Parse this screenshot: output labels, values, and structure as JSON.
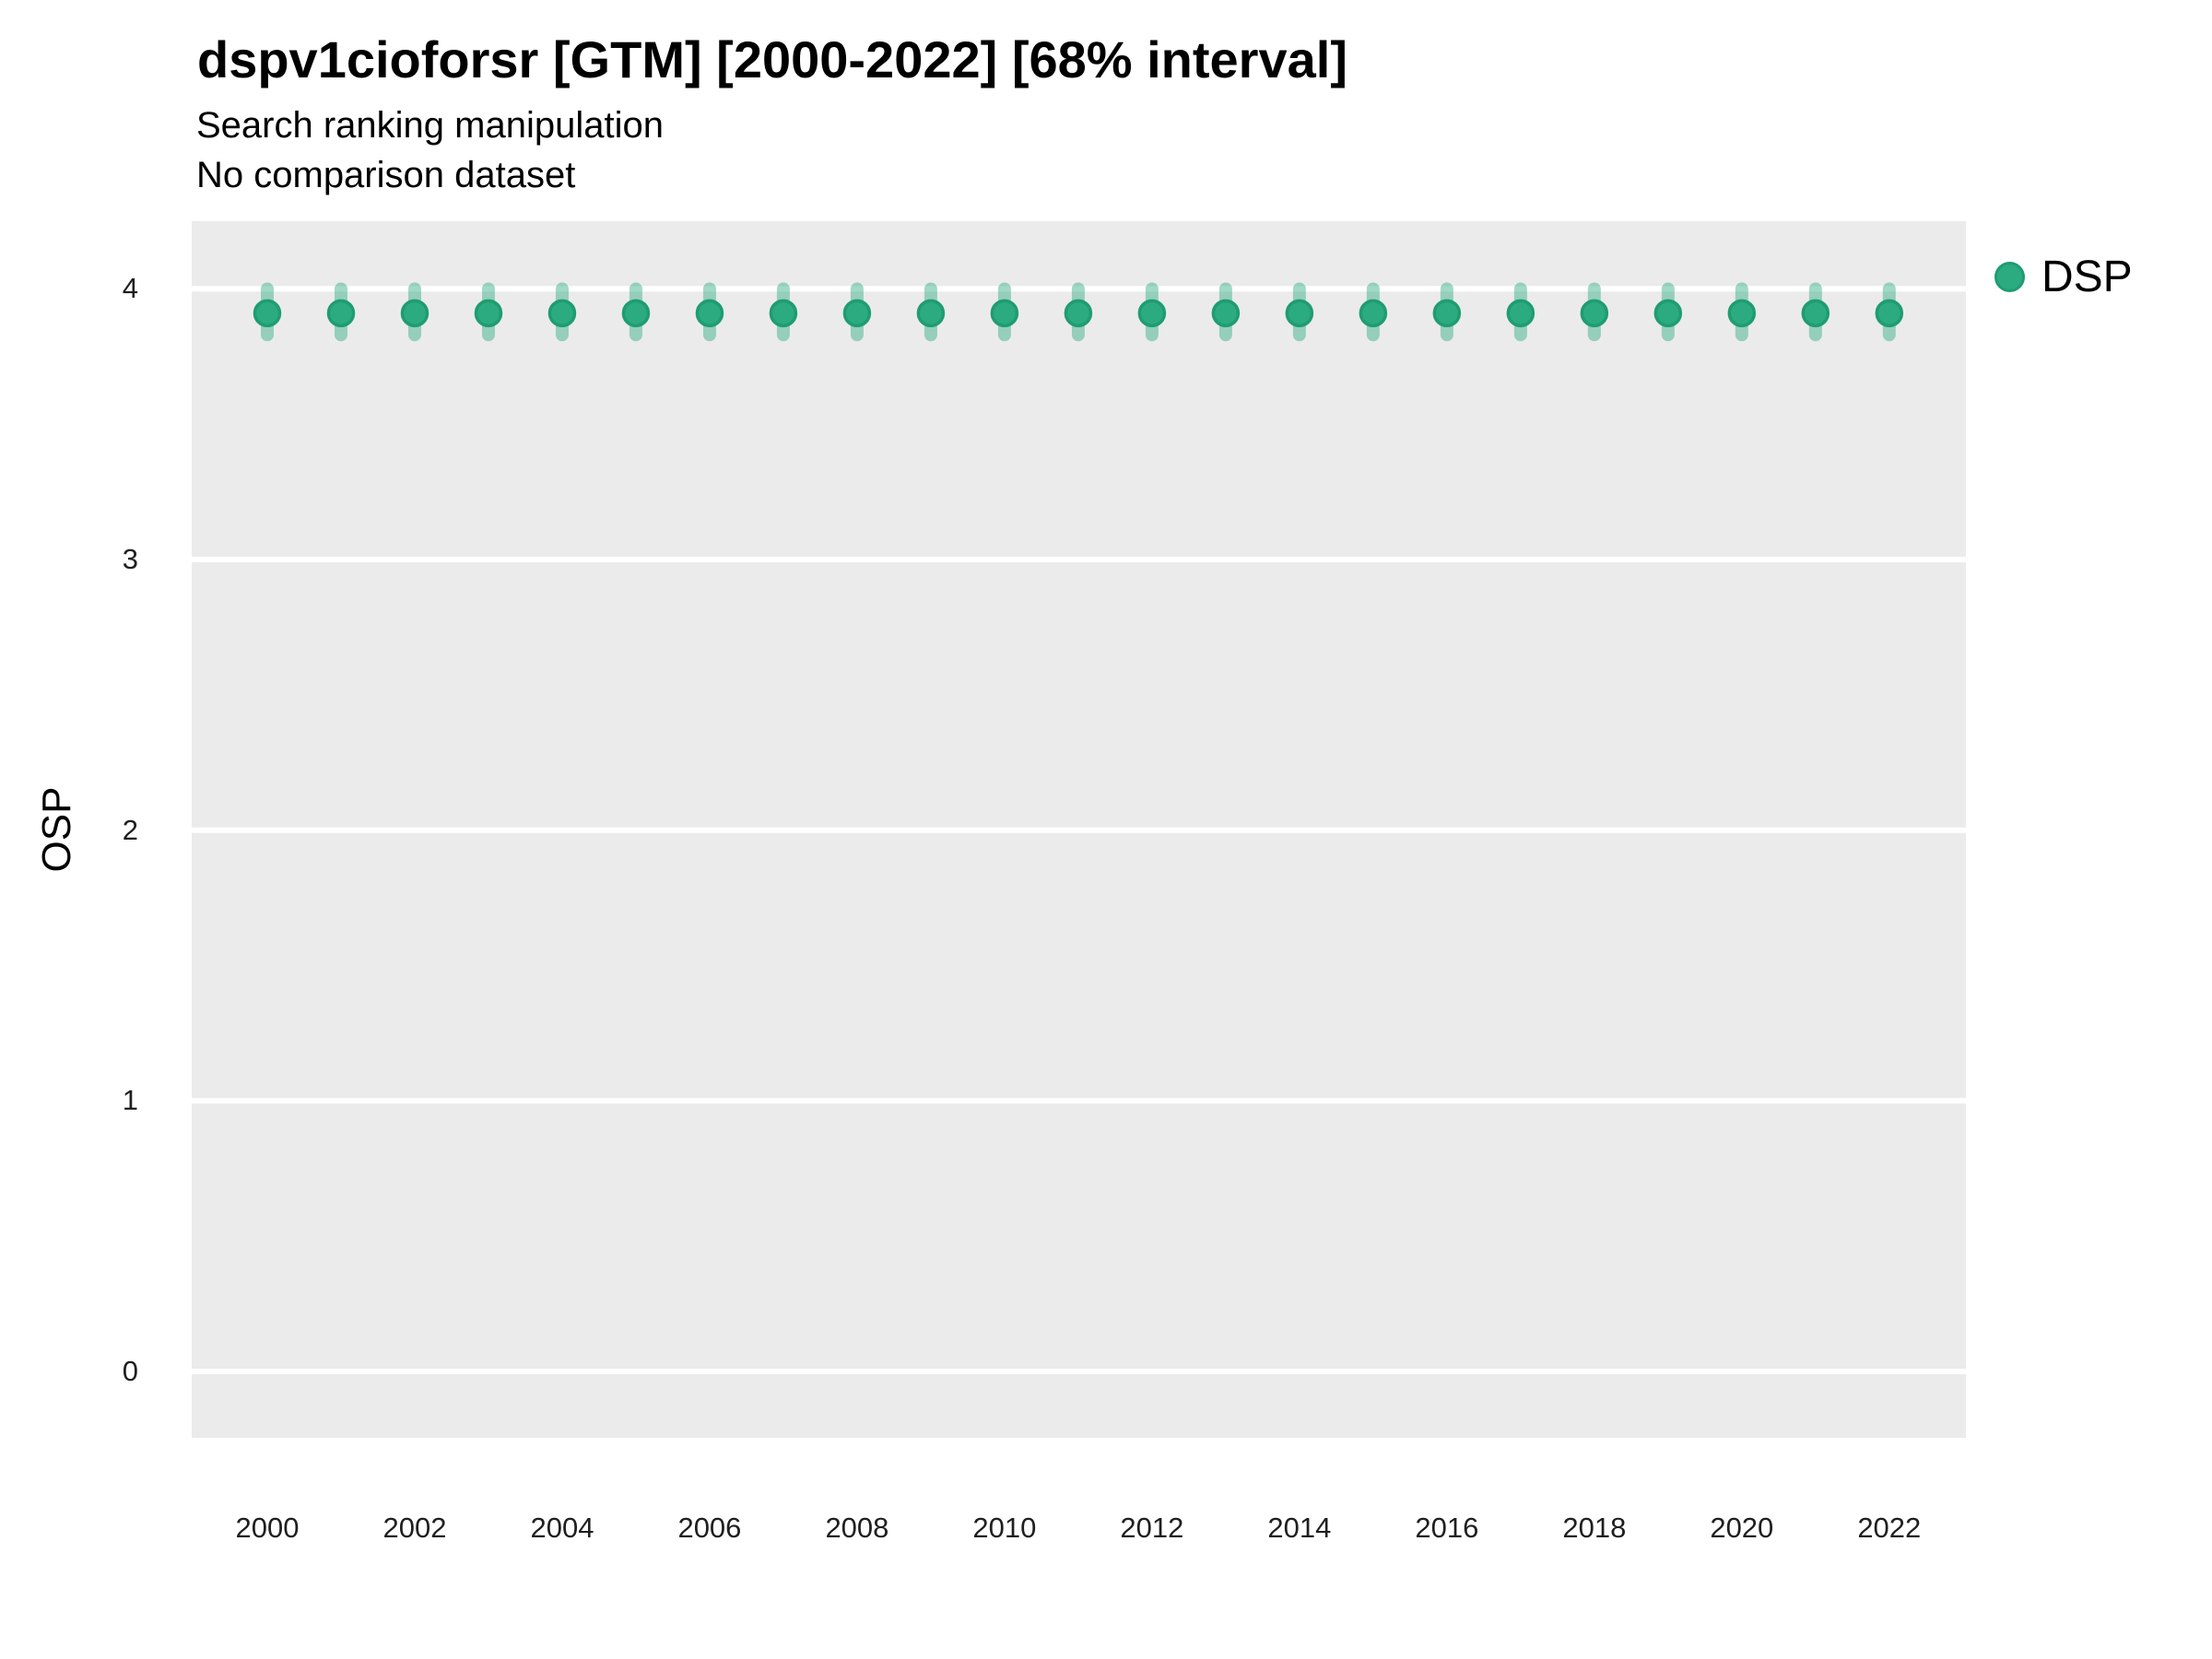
{
  "header": {
    "title": "dspv1cioforsr [GTM] [2000-2022] [68% interval]",
    "subtitle": "Search ranking manipulation",
    "note": "No comparison dataset"
  },
  "colors": {
    "background": "#ffffff",
    "panel_bg": "#ebebeb",
    "gridline": "#ffffff",
    "point_fill": "#2cab80",
    "point_stroke": "#1f9d70",
    "interval_fill": "#2cab80",
    "interval_opacity": 0.45,
    "title_text": "#000000",
    "tick_text": "#1f1f1f"
  },
  "legend": {
    "position": "right",
    "items": [
      {
        "label": "DSP",
        "color": "#2cab80"
      }
    ]
  },
  "chart_data": {
    "type": "scatter",
    "title": "dspv1cioforsr [GTM] [2000-2022] [68% interval]",
    "subtitle": "Search ranking manipulation",
    "note": "No comparison dataset",
    "xlabel": "",
    "ylabel": "OSP",
    "interval_level": "68%",
    "grid": "horizontal-major-only",
    "legend_position": "right",
    "x": [
      2000,
      2001,
      2002,
      2003,
      2004,
      2005,
      2006,
      2007,
      2008,
      2009,
      2010,
      2011,
      2012,
      2013,
      2014,
      2015,
      2016,
      2017,
      2018,
      2019,
      2020,
      2021,
      2022
    ],
    "series": [
      {
        "name": "DSP",
        "mean": [
          3.91,
          3.91,
          3.91,
          3.91,
          3.91,
          3.91,
          3.91,
          3.91,
          3.91,
          3.91,
          3.91,
          3.91,
          3.91,
          3.91,
          3.91,
          3.91,
          3.91,
          3.91,
          3.91,
          3.91,
          3.91,
          3.91,
          3.91
        ],
        "lo68": [
          3.82,
          3.82,
          3.82,
          3.82,
          3.82,
          3.82,
          3.82,
          3.82,
          3.82,
          3.82,
          3.82,
          3.82,
          3.82,
          3.82,
          3.82,
          3.82,
          3.82,
          3.82,
          3.82,
          3.82,
          3.82,
          3.82,
          3.82
        ],
        "hi68": [
          4.01,
          4.01,
          4.01,
          4.01,
          4.01,
          4.01,
          4.01,
          4.01,
          4.01,
          4.01,
          4.01,
          4.01,
          4.01,
          4.01,
          4.01,
          4.01,
          4.01,
          4.01,
          4.01,
          4.01,
          4.01,
          4.01,
          4.01
        ]
      }
    ],
    "x_ticks": [
      2000,
      2002,
      2004,
      2006,
      2008,
      2010,
      2012,
      2014,
      2016,
      2018,
      2020,
      2022
    ],
    "y_ticks": [
      0,
      1,
      2,
      3,
      4
    ],
    "xlim": [
      1998.975,
      2023.04
    ],
    "ylim": [
      -0.245,
      4.25
    ]
  }
}
